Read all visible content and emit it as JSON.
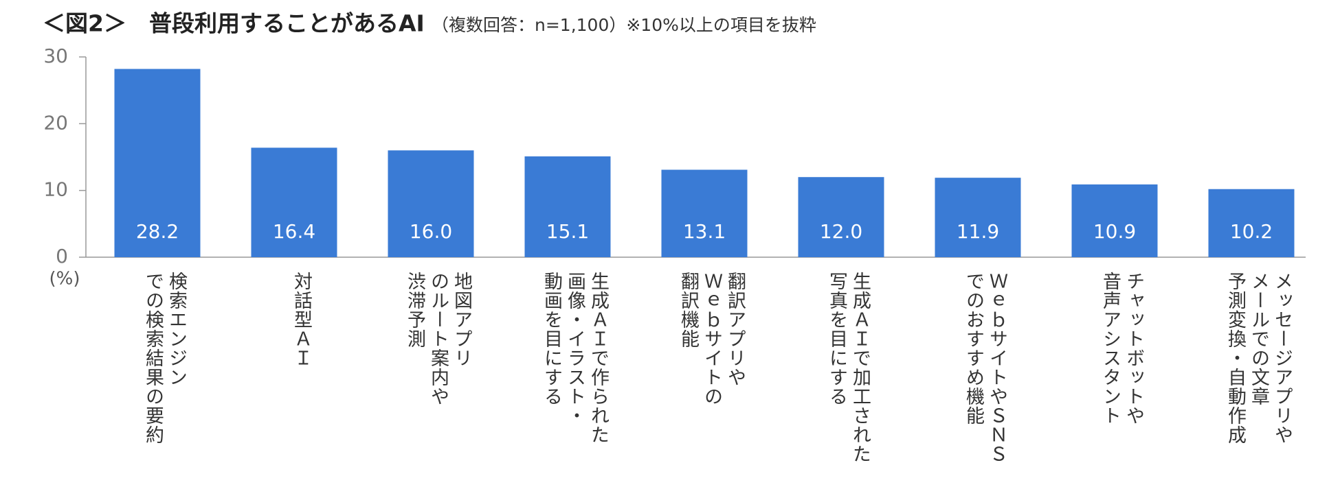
{
  "chart_data": {
    "type": "bar",
    "title": "＜図2＞　普段利用することがあるAI",
    "subtitle": "（複数回答：n=1,100）※10%以上の項目を抜粋",
    "y_unit": "(%)",
    "categories": [
      "検索エンジン\nでの検索結果の要約",
      "対話型ＡＩ",
      "地図アプリ\nのルート案内や\n渋滞予測",
      "生成ＡＩで作られた\n画像・イラスト・\n動画を目にする",
      "翻訳アプリや\nＷｅｂサイトの\n翻訳機能",
      "生成ＡＩで加工された\n写真を目にする",
      "ＷｅｂサイトやＳＮＳ\nでのおすすめ機能",
      "チャットボットや\n音声アシスタント",
      "メッセージアプリや\nメールでの文章\n予測変換・自動作成"
    ],
    "values": [
      28.2,
      16.4,
      16.0,
      15.1,
      13.1,
      12.0,
      11.9,
      10.9,
      10.2
    ],
    "value_labels": [
      "28.2",
      "16.4",
      "16.0",
      "15.1",
      "13.1",
      "12.0",
      "11.9",
      "10.9",
      "10.2"
    ],
    "color": "#3a7bd5",
    "ylim": [
      0,
      30
    ],
    "yticks": [
      0,
      10,
      20,
      30
    ],
    "grid": false
  }
}
